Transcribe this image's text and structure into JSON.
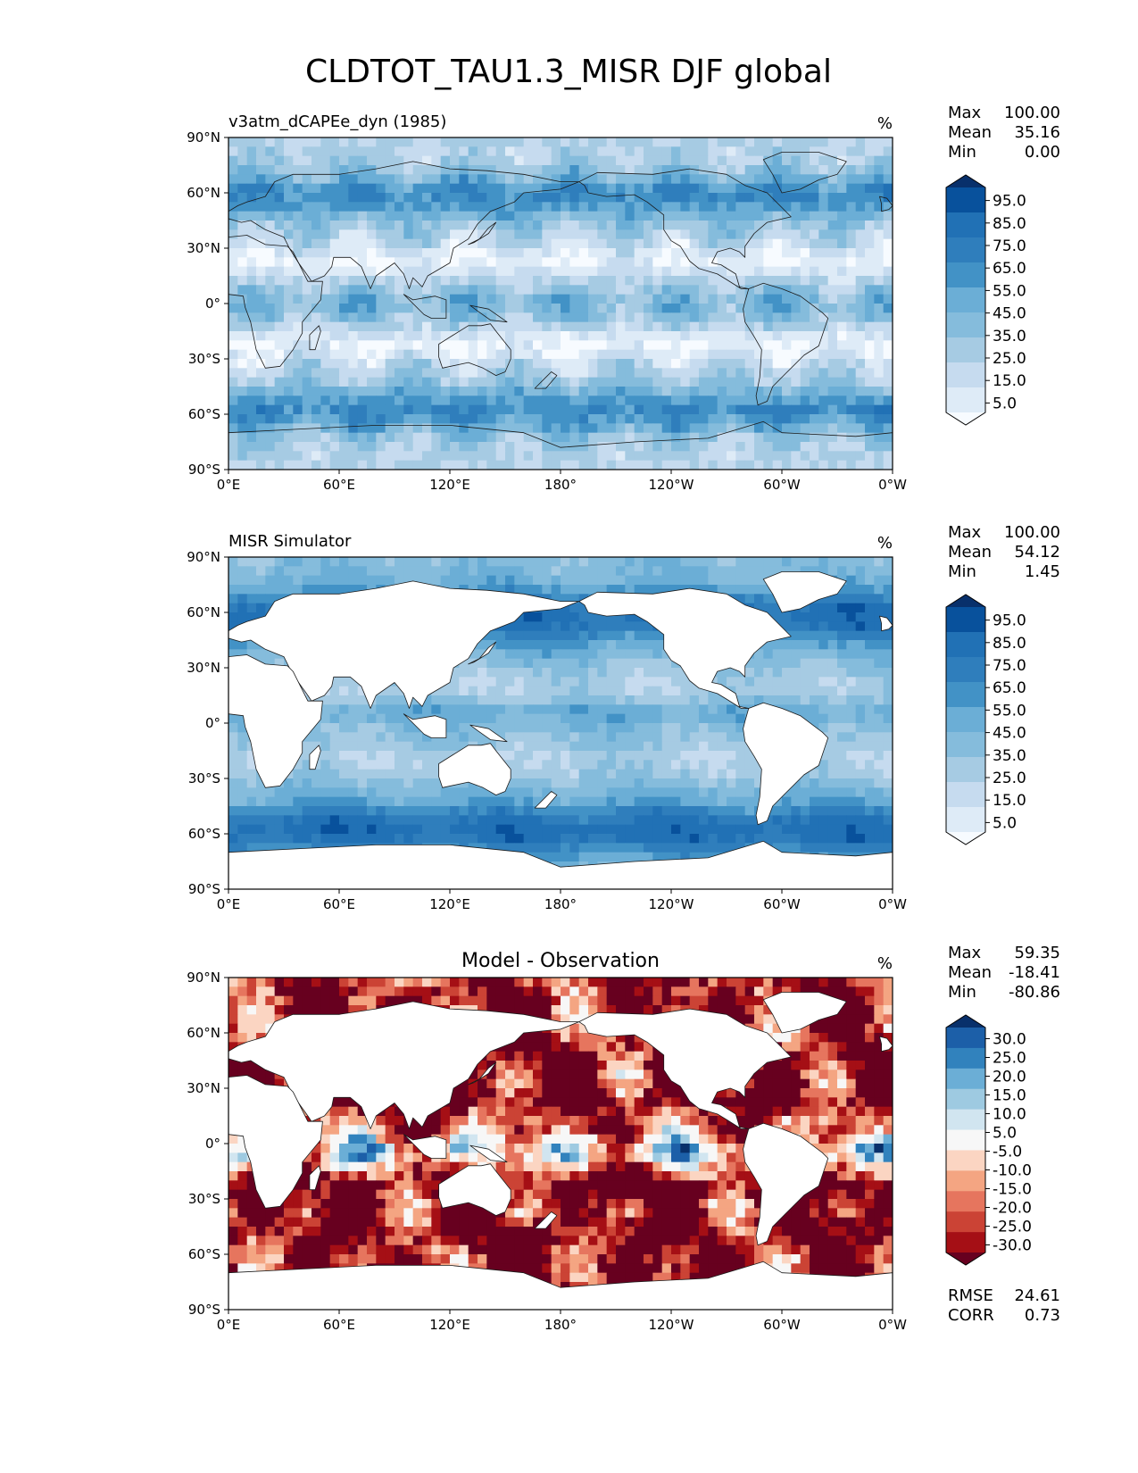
{
  "title": "CLDTOT_TAU1.3_MISR DJF global",
  "colors": {
    "blues": [
      "#f7fbff",
      "#deebf7",
      "#c6dbef",
      "#a6cbe3",
      "#85bcdc",
      "#6baed6",
      "#4292c6",
      "#2f7ebc",
      "#2171b5",
      "#08519c",
      "#08306b"
    ],
    "diff": [
      "#67001f",
      "#a50f15",
      "#cb4335",
      "#e6755e",
      "#f4a582",
      "#fbd5c2",
      "#f7f7f7",
      "#d1e5f0",
      "#9ecae1",
      "#6baed6",
      "#3182bd",
      "#1c5fa8",
      "#08306b"
    ],
    "land": "#ffffff",
    "coast": "#1a1a1a"
  },
  "chart_data": [
    {
      "type": "heatmap",
      "title_left": "v3atm_dCAPEe_dyn (1985)",
      "unit": "%",
      "stats": [
        {
          "label": "Max",
          "value": "100.00"
        },
        {
          "label": "Mean",
          "value": "35.16"
        },
        {
          "label": "Min",
          "value": "0.00"
        }
      ],
      "xticks": [
        "0°E",
        "60°E",
        "120°E",
        "180°",
        "120°W",
        "60°W",
        "0°W"
      ],
      "yticks": [
        "90°N",
        "60°N",
        "30°N",
        "0°",
        "30°S",
        "60°S",
        "90°S"
      ],
      "colorbar_ticks": [
        "95.0",
        "85.0",
        "75.0",
        "65.0",
        "55.0",
        "45.0",
        "35.0",
        "25.0",
        "15.0",
        "5.0"
      ],
      "field": "model"
    },
    {
      "type": "heatmap",
      "title_left": "MISR Simulator",
      "unit": "%",
      "stats": [
        {
          "label": "Max",
          "value": "100.00"
        },
        {
          "label": "Mean",
          "value": "54.12"
        },
        {
          "label": "Min",
          "value": "1.45"
        }
      ],
      "xticks": [
        "0°E",
        "60°E",
        "120°E",
        "180°",
        "120°W",
        "60°W",
        "0°W"
      ],
      "yticks": [
        "90°N",
        "60°N",
        "30°N",
        "0°",
        "30°S",
        "60°S",
        "90°S"
      ],
      "colorbar_ticks": [
        "95.0",
        "85.0",
        "75.0",
        "65.0",
        "55.0",
        "45.0",
        "35.0",
        "25.0",
        "15.0",
        "5.0"
      ],
      "field": "obs"
    },
    {
      "type": "heatmap",
      "title_center": "Model - Observation",
      "unit": "%",
      "stats": [
        {
          "label": "Max",
          "value": "59.35"
        },
        {
          "label": "Mean",
          "value": "-18.41"
        },
        {
          "label": "Min",
          "value": "-80.86"
        }
      ],
      "extra_stats": [
        {
          "label": "RMSE",
          "value": "24.61"
        },
        {
          "label": "CORR",
          "value": "0.73"
        }
      ],
      "xticks": [
        "0°E",
        "60°E",
        "120°E",
        "180°",
        "120°W",
        "60°W",
        "0°W"
      ],
      "yticks": [
        "90°N",
        "60°N",
        "30°N",
        "0°",
        "30°S",
        "60°S",
        "90°S"
      ],
      "colorbar_ticks": [
        "30.0",
        "25.0",
        "20.0",
        "15.0",
        "10.0",
        "5.0",
        "-5.0",
        "-10.0",
        "-15.0",
        "-20.0",
        "-25.0",
        "-30.0"
      ],
      "field": "diff"
    }
  ]
}
